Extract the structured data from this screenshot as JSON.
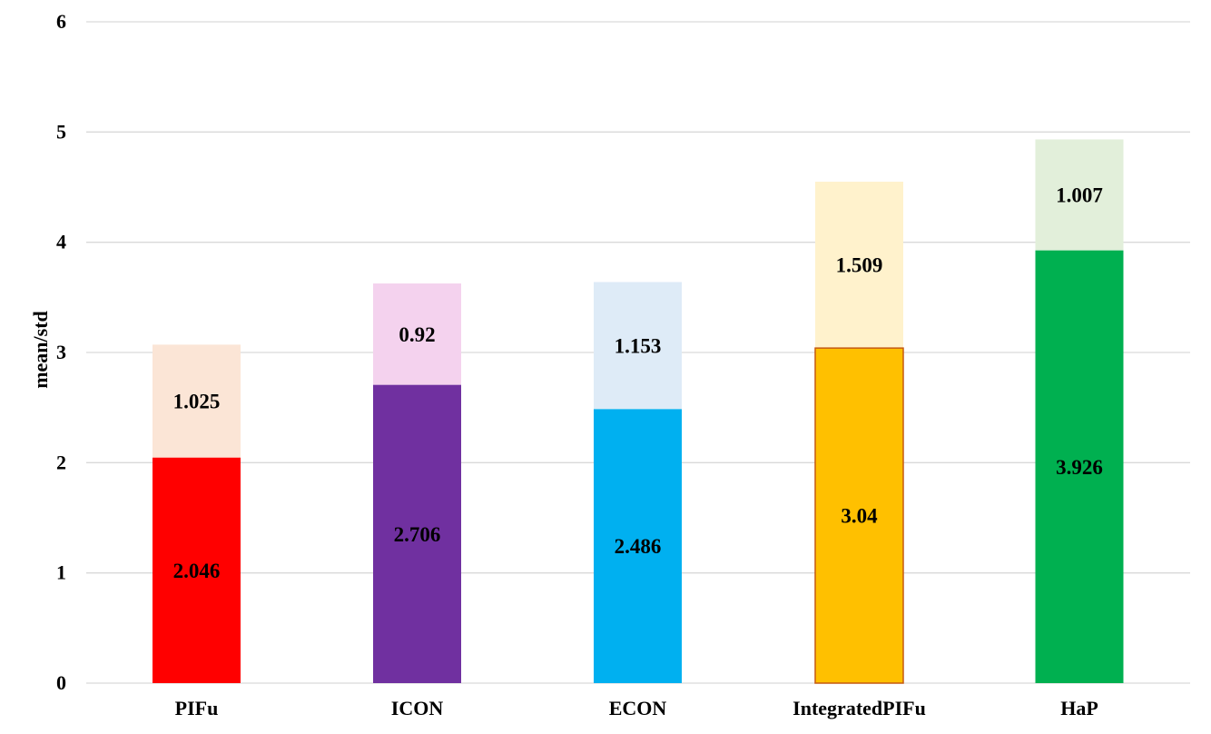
{
  "chart_data": {
    "type": "bar",
    "stacked": true,
    "categories": [
      "PIFu",
      "ICON",
      "ECON",
      "IntegratedPIFu",
      "HaP"
    ],
    "series": [
      {
        "values": [
          2.046,
          2.706,
          2.486,
          3.04,
          3.926
        ],
        "colors": [
          "#ff0000",
          "#7030a0",
          "#00b0f0",
          "#ffc000",
          "#00b050"
        ]
      },
      {
        "values": [
          1.025,
          0.92,
          1.153,
          1.509,
          1.007
        ],
        "colors": [
          "#fbe5d6",
          "#f4d2ee",
          "#deebf7",
          "#fff2cc",
          "#e2efda"
        ]
      }
    ],
    "data_labels": {
      "bottom": [
        "2.046",
        "2.706",
        "2.486",
        "3.04",
        "3.926"
      ],
      "top": [
        "1.025",
        "0.92",
        "1.153",
        "1.509",
        "1.007"
      ]
    },
    "y_ticks": [
      "0",
      "1",
      "2",
      "3",
      "4",
      "5",
      "6"
    ],
    "title": "",
    "xlabel": "",
    "ylabel": "mean/std",
    "ylim": [
      0,
      6
    ],
    "grid": true,
    "legend": "none",
    "gridline_color": "#d9d9d9",
    "segment_border_color": "#c55a11"
  }
}
